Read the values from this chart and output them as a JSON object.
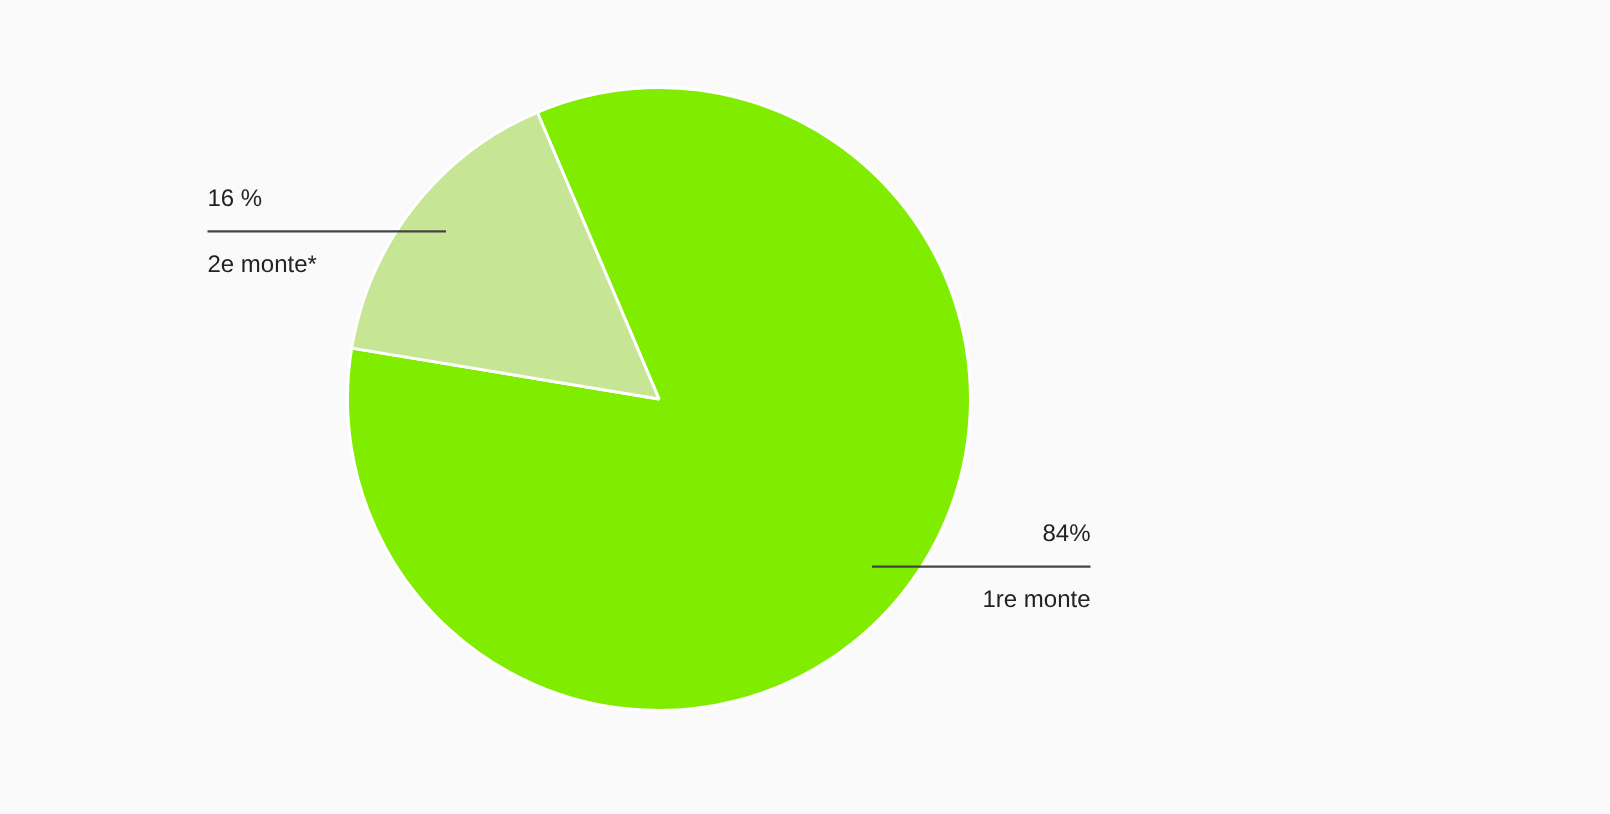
{
  "chart_data": {
    "type": "pie",
    "categories": [
      "1re monte",
      "2e monte*"
    ],
    "values": [
      84,
      16
    ],
    "colors": [
      "#80ec00",
      "#c6e595"
    ],
    "value_labels": [
      "84%",
      "16 %"
    ]
  }
}
